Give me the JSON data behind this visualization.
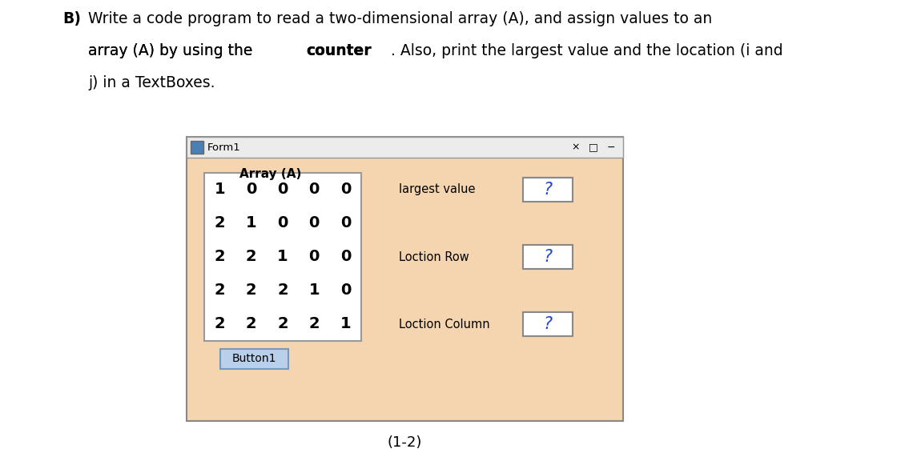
{
  "form_title": "Form1",
  "form_bg": "#f5d5b0",
  "array_label": "Array (A)",
  "array_data": [
    [
      1,
      0,
      0,
      0,
      0
    ],
    [
      2,
      1,
      0,
      0,
      0
    ],
    [
      2,
      2,
      1,
      0,
      0
    ],
    [
      2,
      2,
      2,
      1,
      0
    ],
    [
      2,
      2,
      2,
      2,
      1
    ]
  ],
  "labels_right": [
    "largest value",
    "Loction Row",
    "Loction Column"
  ],
  "textbox_value": "?",
  "button_label": "Button1",
  "button_bg": "#b8d0ea",
  "button_border": "#7799bb",
  "footnote": "(1-2)",
  "line1": "Write a code program to read a two-dimensional array (A), and assign values to an",
  "line2a": "array (A) by using the ",
  "line2b": "counter",
  "line2c": ". Also, print the largest value and the location (i and",
  "line3": "j) in a TextBoxes.",
  "header_bold": "B)",
  "fontsize_header": 13.5,
  "form_icon_color": "#4a7fb5"
}
